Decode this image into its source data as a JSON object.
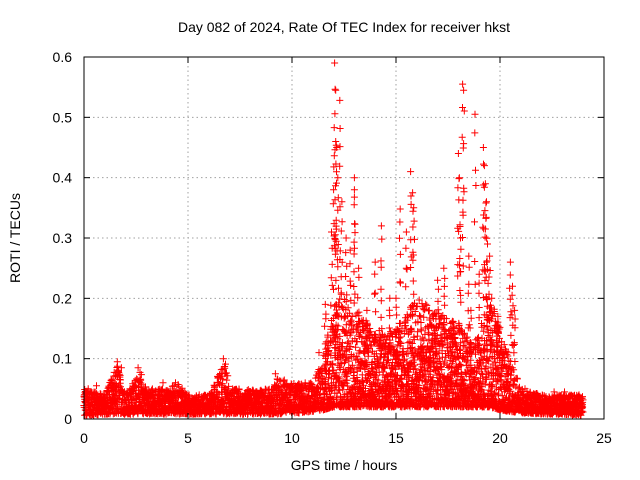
{
  "chart_data": {
    "type": "scatter",
    "title": "Day 082 of 2024, Rate Of TEC Index for receiver hkst",
    "xlabel": "GPS time / hours",
    "ylabel": "ROTI / TECUs",
    "xlim": [
      0,
      25
    ],
    "ylim": [
      0,
      0.6
    ],
    "xticks": [
      0,
      5,
      10,
      15,
      20,
      25
    ],
    "yticks": [
      0,
      0.1,
      0.2,
      0.3,
      0.4,
      0.5,
      0.6
    ],
    "grid": true,
    "marker": "+",
    "colors": {
      "series": "#ff0000",
      "grid": "#a0a0a0",
      "axis": "#000000"
    },
    "series": [
      {
        "name": "ROTI",
        "baseline_envelope": {
          "x": [
            0,
            1,
            1.6,
            2,
            2.7,
            3,
            4,
            4.5,
            5,
            6,
            6.8,
            7,
            8,
            9,
            9.3,
            10,
            10.5,
            11,
            11.5,
            12,
            12.5,
            13,
            14,
            15,
            16,
            17,
            18,
            18.7,
            19.5,
            20,
            20.5,
            21,
            22,
            23,
            24
          ],
          "low": [
            0.005,
            0.008,
            0.008,
            0.008,
            0.008,
            0.008,
            0.008,
            0.008,
            0.008,
            0.008,
            0.008,
            0.008,
            0.008,
            0.008,
            0.008,
            0.01,
            0.01,
            0.012,
            0.015,
            0.02,
            0.02,
            0.02,
            0.02,
            0.02,
            0.02,
            0.02,
            0.02,
            0.02,
            0.02,
            0.015,
            0.012,
            0.01,
            0.008,
            0.008,
            0.005
          ],
          "high": [
            0.05,
            0.04,
            0.09,
            0.04,
            0.08,
            0.05,
            0.05,
            0.06,
            0.04,
            0.04,
            0.1,
            0.05,
            0.05,
            0.05,
            0.07,
            0.06,
            0.06,
            0.06,
            0.1,
            0.2,
            0.2,
            0.18,
            0.15,
            0.15,
            0.2,
            0.18,
            0.16,
            0.12,
            0.2,
            0.16,
            0.1,
            0.05,
            0.04,
            0.04,
            0.04
          ]
        },
        "peaks": [
          {
            "x": 0.2,
            "y": 0.05
          },
          {
            "x": 0.6,
            "y": 0.055
          },
          {
            "x": 1.6,
            "y": 0.095
          },
          {
            "x": 1.8,
            "y": 0.085
          },
          {
            "x": 2.6,
            "y": 0.085
          },
          {
            "x": 3.8,
            "y": 0.06
          },
          {
            "x": 4.4,
            "y": 0.06
          },
          {
            "x": 6.3,
            "y": 0.055
          },
          {
            "x": 6.7,
            "y": 0.1
          },
          {
            "x": 9.2,
            "y": 0.075
          },
          {
            "x": 11.3,
            "y": 0.11
          },
          {
            "x": 11.6,
            "y": 0.19
          },
          {
            "x": 11.9,
            "y": 0.31
          },
          {
            "x": 12.0,
            "y": 0.38
          },
          {
            "x": 12.05,
            "y": 0.59
          },
          {
            "x": 12.1,
            "y": 0.545
          },
          {
            "x": 12.1,
            "y": 0.46
          },
          {
            "x": 12.15,
            "y": 0.45
          },
          {
            "x": 12.2,
            "y": 0.4
          },
          {
            "x": 12.3,
            "y": 0.528
          },
          {
            "x": 12.4,
            "y": 0.36
          },
          {
            "x": 12.6,
            "y": 0.3
          },
          {
            "x": 12.8,
            "y": 0.28
          },
          {
            "x": 13.0,
            "y": 0.4
          },
          {
            "x": 13.0,
            "y": 0.38
          },
          {
            "x": 13.2,
            "y": 0.25
          },
          {
            "x": 13.6,
            "y": 0.18
          },
          {
            "x": 14.0,
            "y": 0.26
          },
          {
            "x": 14.3,
            "y": 0.32
          },
          {
            "x": 14.7,
            "y": 0.2
          },
          {
            "x": 15.0,
            "y": 0.2
          },
          {
            "x": 15.2,
            "y": 0.348
          },
          {
            "x": 15.5,
            "y": 0.31
          },
          {
            "x": 15.7,
            "y": 0.41
          },
          {
            "x": 15.8,
            "y": 0.375
          },
          {
            "x": 15.85,
            "y": 0.35
          },
          {
            "x": 16.2,
            "y": 0.16
          },
          {
            "x": 16.6,
            "y": 0.18
          },
          {
            "x": 17.0,
            "y": 0.23
          },
          {
            "x": 17.3,
            "y": 0.25
          },
          {
            "x": 17.7,
            "y": 0.16
          },
          {
            "x": 17.9,
            "y": 0.12
          },
          {
            "x": 18.0,
            "y": 0.44
          },
          {
            "x": 18.05,
            "y": 0.4
          },
          {
            "x": 18.1,
            "y": 0.3
          },
          {
            "x": 18.2,
            "y": 0.555
          },
          {
            "x": 18.25,
            "y": 0.545
          },
          {
            "x": 18.5,
            "y": 0.27
          },
          {
            "x": 18.6,
            "y": 0.18
          },
          {
            "x": 18.8,
            "y": 0.505
          },
          {
            "x": 19.0,
            "y": 0.24
          },
          {
            "x": 19.2,
            "y": 0.45
          },
          {
            "x": 19.25,
            "y": 0.42
          },
          {
            "x": 19.3,
            "y": 0.39
          },
          {
            "x": 19.35,
            "y": 0.36
          },
          {
            "x": 19.4,
            "y": 0.29
          },
          {
            "x": 19.5,
            "y": 0.27
          },
          {
            "x": 19.6,
            "y": 0.2
          },
          {
            "x": 19.9,
            "y": 0.17
          },
          {
            "x": 20.2,
            "y": 0.11
          },
          {
            "x": 20.5,
            "y": 0.26
          },
          {
            "x": 20.6,
            "y": 0.22
          },
          {
            "x": 20.7,
            "y": 0.18
          },
          {
            "x": 21.2,
            "y": 0.05
          },
          {
            "x": 22.6,
            "y": 0.045
          },
          {
            "x": 23.1,
            "y": 0.045
          },
          {
            "x": 23.8,
            "y": 0.04
          }
        ]
      }
    ]
  }
}
